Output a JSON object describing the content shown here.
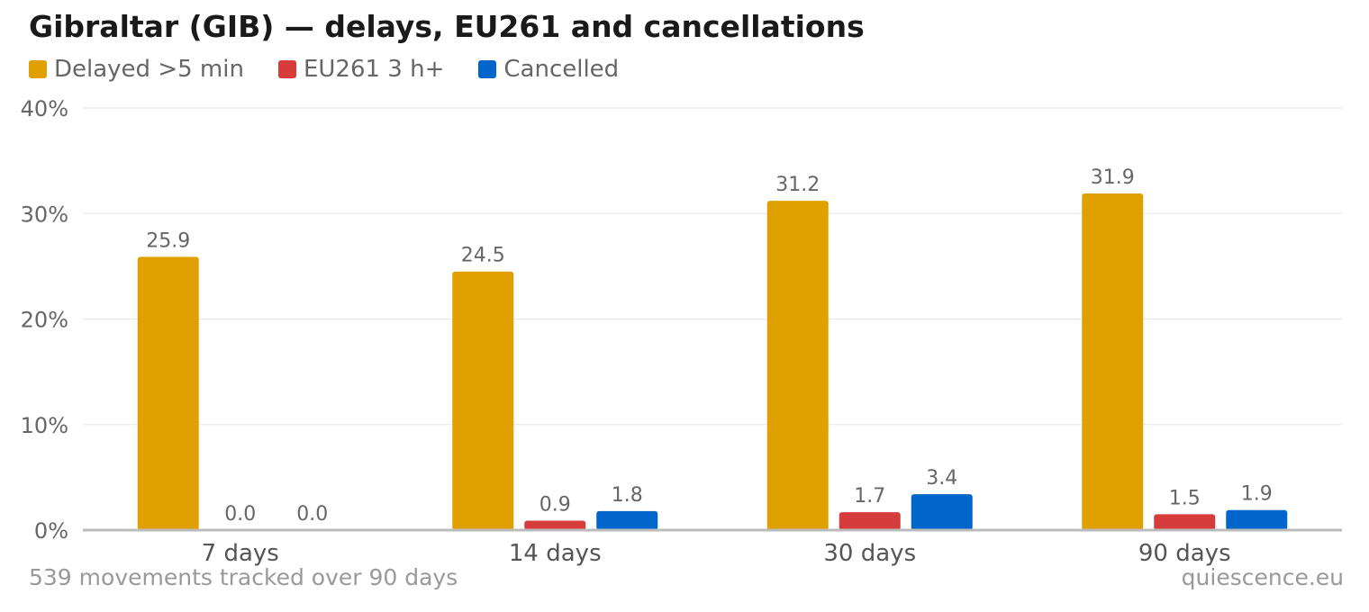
{
  "chart_data": {
    "type": "bar",
    "title": "Gibraltar (GIB) — delays, EU261 and cancellations",
    "categories": [
      "7 days",
      "14 days",
      "30 days",
      "90 days"
    ],
    "series": [
      {
        "name": "Delayed >5 min",
        "color": "#e0a000",
        "values": [
          25.9,
          24.5,
          31.2,
          31.9
        ],
        "labels": [
          "25.9",
          "24.5",
          "31.2",
          "31.9"
        ]
      },
      {
        "name": "EU261 3 h+",
        "color": "#d63c3c",
        "values": [
          0.0,
          0.9,
          1.7,
          1.5
        ],
        "labels": [
          "0.0",
          "0.9",
          "1.7",
          "1.5"
        ]
      },
      {
        "name": "Cancelled",
        "color": "#0066cc",
        "values": [
          0.0,
          1.8,
          3.4,
          1.9
        ],
        "labels": [
          "0.0",
          "1.8",
          "3.4",
          "1.9"
        ]
      }
    ],
    "ylim": [
      0,
      40
    ],
    "yticks": [
      0,
      10,
      20,
      30,
      40
    ],
    "ytick_labels": [
      "0%",
      "10%",
      "20%",
      "30%",
      "40%"
    ],
    "grid": true,
    "legend_position": "top-left"
  },
  "footnote": "539 movements tracked over 90 days",
  "source": "quiescence.eu"
}
